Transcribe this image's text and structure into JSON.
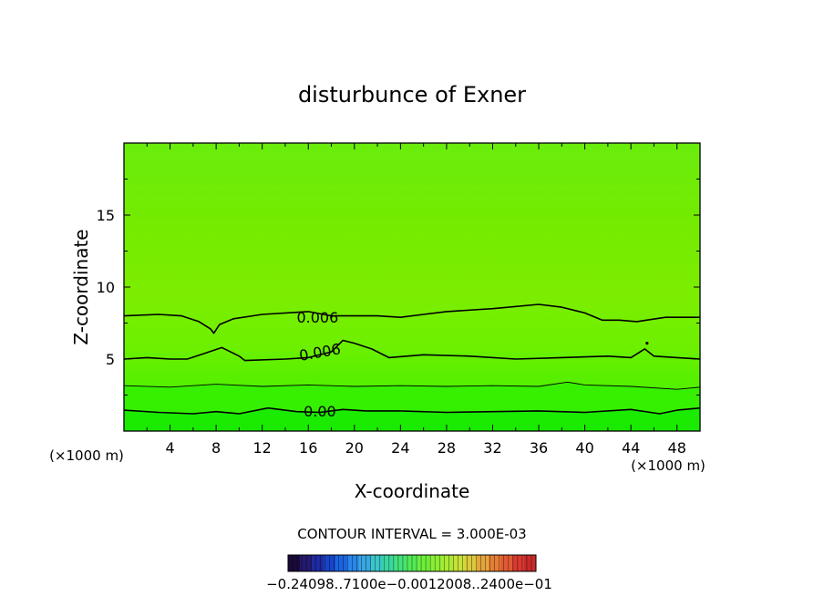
{
  "chart_data": {
    "type": "contour",
    "title": "disturbunce of Exner",
    "xlabel": "X-coordinate",
    "ylabel": "Z-coordinate",
    "x_unit": "(×1000 m)",
    "y_unit": "(×1000 m)",
    "xlim": [
      0,
      50
    ],
    "ylim": [
      0,
      20
    ],
    "x_ticks": [
      4,
      8,
      12,
      16,
      20,
      24,
      28,
      32,
      36,
      40,
      44,
      48
    ],
    "y_ticks": [
      5,
      10,
      15
    ],
    "contour_interval_text": "CONTOUR INTERVAL = 3.000E-03",
    "contour_labels": [
      {
        "text": "0.006",
        "x": 16.8,
        "y": 7.9
      },
      {
        "text": "0.006",
        "x": 17.0,
        "y": 5.5
      },
      {
        "text": "0.00",
        "x": 17.0,
        "y": 1.4
      }
    ],
    "contours": [
      {
        "name": "upper",
        "points": [
          [
            0,
            8.0
          ],
          [
            3,
            8.1
          ],
          [
            5,
            8.0
          ],
          [
            6.5,
            7.6
          ],
          [
            7.5,
            7.1
          ],
          [
            7.8,
            6.8
          ],
          [
            8.3,
            7.4
          ],
          [
            9.5,
            7.8
          ],
          [
            12,
            8.1
          ],
          [
            16,
            8.3
          ],
          [
            18,
            8.0
          ],
          [
            20,
            8.0
          ],
          [
            22,
            8.0
          ],
          [
            24,
            7.9
          ],
          [
            26,
            8.1
          ],
          [
            28,
            8.3
          ],
          [
            32,
            8.5
          ],
          [
            36,
            8.8
          ],
          [
            38,
            8.6
          ],
          [
            40,
            8.2
          ],
          [
            41.5,
            7.7
          ],
          [
            43,
            7.7
          ],
          [
            44.5,
            7.6
          ],
          [
            47,
            7.9
          ],
          [
            50,
            7.9
          ]
        ]
      },
      {
        "name": "middle",
        "points": [
          [
            0,
            5.0
          ],
          [
            2,
            5.1
          ],
          [
            4,
            5.0
          ],
          [
            5.5,
            5.0
          ],
          [
            7,
            5.4
          ],
          [
            8.5,
            5.8
          ],
          [
            10,
            5.2
          ],
          [
            10.5,
            4.9
          ],
          [
            14,
            5.0
          ],
          [
            16,
            5.1
          ],
          [
            18,
            5.5
          ],
          [
            19,
            6.3
          ],
          [
            20,
            6.1
          ],
          [
            21.5,
            5.7
          ],
          [
            23,
            5.1
          ],
          [
            26,
            5.3
          ],
          [
            30,
            5.2
          ],
          [
            34,
            5.0
          ],
          [
            38,
            5.1
          ],
          [
            42,
            5.2
          ],
          [
            44,
            5.1
          ],
          [
            45.2,
            5.7
          ],
          [
            46,
            5.2
          ],
          [
            48,
            5.1
          ],
          [
            50,
            5.0
          ]
        ]
      },
      {
        "name": "thin",
        "points": [
          [
            0,
            3.15
          ],
          [
            4,
            3.05
          ],
          [
            8,
            3.25
          ],
          [
            12,
            3.1
          ],
          [
            16,
            3.2
          ],
          [
            20,
            3.1
          ],
          [
            24,
            3.15
          ],
          [
            28,
            3.1
          ],
          [
            32,
            3.15
          ],
          [
            36,
            3.1
          ],
          [
            38.5,
            3.4
          ],
          [
            40,
            3.2
          ],
          [
            44,
            3.1
          ],
          [
            48,
            2.9
          ],
          [
            50,
            3.05
          ]
        ]
      },
      {
        "name": "zero",
        "points": [
          [
            0,
            1.45
          ],
          [
            3,
            1.3
          ],
          [
            6,
            1.2
          ],
          [
            8,
            1.35
          ],
          [
            10,
            1.2
          ],
          [
            12.5,
            1.6
          ],
          [
            15,
            1.35
          ],
          [
            17,
            1.3
          ],
          [
            19,
            1.5
          ],
          [
            21,
            1.4
          ],
          [
            24,
            1.4
          ],
          [
            28,
            1.3
          ],
          [
            32,
            1.35
          ],
          [
            36,
            1.4
          ],
          [
            40,
            1.3
          ],
          [
            44,
            1.5
          ],
          [
            46.5,
            1.2
          ],
          [
            48,
            1.45
          ],
          [
            50,
            1.6
          ]
        ]
      }
    ],
    "colorbar": {
      "tick_text": "−0.24098..7100e−0.0012008..2400e−01",
      "colors": [
        "#1a0a3a",
        "#241a6e",
        "#1e2aa0",
        "#1a44c8",
        "#1a64e0",
        "#2a86e8",
        "#38a6e0",
        "#3ac6c8",
        "#3ad8a0",
        "#44e27a",
        "#52ea56",
        "#6cee3a",
        "#8cee34",
        "#aaea34",
        "#c8e038",
        "#dcc83c",
        "#e4a43c",
        "#e47e36",
        "#e05a32",
        "#d83a30",
        "#c82a2a"
      ]
    },
    "colors": {
      "band_top": "#7ee800",
      "band_mid": "#66f000",
      "band_low": "#2ef000",
      "band_bottom": "#10e800",
      "contour_line": "#000000"
    }
  }
}
